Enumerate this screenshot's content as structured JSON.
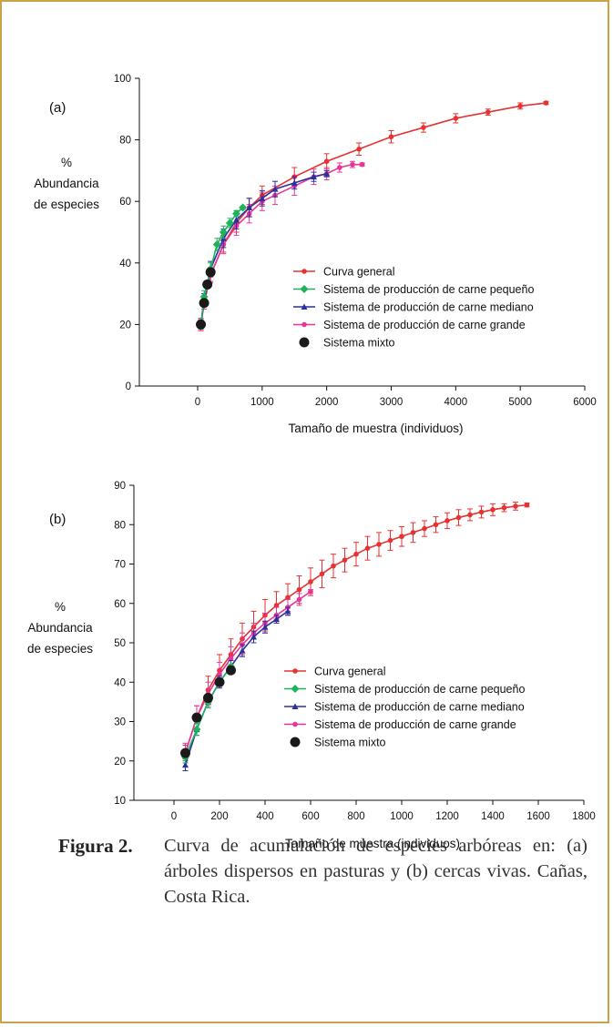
{
  "caption": {
    "label": "Figura 2.",
    "text": "Curva de acumulación de especies arbóreas en: (a) árboles dispersos en pasturas y (b) cercas vivas. Cañas, Costa Rica."
  },
  "colors": {
    "general": "#e63232",
    "pequeno": "#1db35c",
    "mediano": "#2b2fa0",
    "grande": "#e8359a",
    "mixto": "#1a1a1a",
    "frame": "#c9a24a"
  },
  "chart_data": [
    {
      "type": "line",
      "panel_label": "(a)",
      "ylabel": "%\nAbundancia\nde especies",
      "xlabel": "Tamaño de muestra (individuos)",
      "xlim": [
        -1000,
        6000
      ],
      "ylim": [
        0,
        100
      ],
      "xticks": [
        0,
        1000,
        2000,
        3000,
        4000,
        5000,
        6000
      ],
      "yticks": [
        0,
        20,
        40,
        60,
        80,
        100
      ],
      "legend_position": "lower-right",
      "series": [
        {
          "name": "Curva general",
          "key": "general",
          "marker": "circle",
          "x": [
            50,
            100,
            200,
            400,
            600,
            800,
            1000,
            1500,
            2000,
            2500,
            3000,
            3500,
            4000,
            4500,
            5000,
            5400
          ],
          "y": [
            20,
            27,
            36,
            46,
            53,
            58,
            62,
            68,
            73,
            77,
            81,
            84,
            87,
            89,
            91,
            92
          ],
          "err": [
            2,
            2,
            2,
            2.5,
            3,
            3,
            3,
            3,
            2.5,
            2,
            2,
            1.5,
            1.5,
            1,
            1,
            0.5
          ]
        },
        {
          "name": "Sistema de producción de carne pequeño",
          "key": "pequeno",
          "marker": "diamond",
          "x": [
            50,
            100,
            200,
            300,
            400,
            500,
            600,
            700
          ],
          "y": [
            20,
            29,
            38,
            46,
            50,
            53,
            56,
            58
          ],
          "err": [
            1.5,
            2,
            2,
            2,
            2,
            1.5,
            1,
            0.5
          ]
        },
        {
          "name": "Sistema de producción de carne mediano",
          "key": "mediano",
          "marker": "triangle",
          "x": [
            50,
            100,
            200,
            400,
            600,
            800,
            1000,
            1200,
            1500,
            1800,
            2000
          ],
          "y": [
            20,
            28,
            38,
            48,
            54,
            58,
            61,
            64,
            66,
            68,
            69
          ],
          "err": [
            1.5,
            2,
            2.5,
            3,
            3,
            3,
            2.5,
            2.5,
            2,
            1.5,
            1
          ]
        },
        {
          "name": "Sistema de producción de carne grande",
          "key": "grande",
          "marker": "circle",
          "x": [
            50,
            100,
            200,
            400,
            600,
            800,
            1000,
            1200,
            1500,
            1800,
            2000,
            2200,
            2400,
            2550
          ],
          "y": [
            20,
            27,
            36,
            46,
            52,
            56,
            60,
            62,
            65,
            68,
            69,
            71,
            72,
            72
          ],
          "err": [
            2,
            2,
            2.5,
            3,
            3,
            3,
            3,
            3,
            3,
            2.5,
            2,
            1.5,
            1,
            0.5
          ]
        },
        {
          "name": "Sistema mixto",
          "key": "mixto",
          "marker": "dot",
          "x": [
            50,
            100,
            150,
            200
          ],
          "y": [
            20,
            27,
            33,
            37
          ],
          "err": []
        }
      ]
    },
    {
      "type": "line",
      "panel_label": "(b)",
      "ylabel": "%\nAbundancia\nde especies",
      "xlabel": "Tamaño de muestra (individuos)",
      "xlim": [
        -200,
        1800
      ],
      "ylim": [
        10,
        90
      ],
      "xticks": [
        0,
        200,
        400,
        600,
        800,
        1000,
        1200,
        1400,
        1600,
        1800
      ],
      "yticks": [
        10,
        20,
        30,
        40,
        50,
        60,
        70,
        80,
        90
      ],
      "legend_position": "lower-right",
      "series": [
        {
          "name": "Curva general",
          "key": "general",
          "marker": "circle",
          "x": [
            50,
            100,
            150,
            200,
            250,
            300,
            350,
            400,
            450,
            500,
            550,
            600,
            650,
            700,
            750,
            800,
            850,
            900,
            950,
            1000,
            1050,
            1100,
            1150,
            1200,
            1250,
            1300,
            1350,
            1400,
            1450,
            1500,
            1550
          ],
          "y": [
            22,
            31,
            38,
            43,
            47,
            51,
            54,
            57,
            59.5,
            61.5,
            63.5,
            65.5,
            67.5,
            69.5,
            71,
            72.5,
            74,
            75,
            76,
            77,
            78,
            79,
            80,
            81,
            81.8,
            82.5,
            83.2,
            83.8,
            84.3,
            84.7,
            85
          ],
          "err": [
            2,
            3,
            3.5,
            4,
            4,
            4,
            4,
            4,
            3.5,
            3.5,
            3.5,
            3.5,
            3.5,
            3,
            3,
            3,
            3,
            3,
            2.5,
            2.5,
            2.5,
            2,
            2,
            2,
            2,
            1.5,
            1.5,
            1.5,
            1,
            1,
            0.5
          ]
        },
        {
          "name": "Sistema de producción de carne pequeño",
          "key": "pequeno",
          "marker": "diamond",
          "x": [
            50,
            100,
            150,
            200,
            250
          ],
          "y": [
            21,
            28,
            35,
            40,
            44
          ],
          "err": [
            1.5,
            1.5,
            1.5,
            1,
            0.5
          ]
        },
        {
          "name": "Sistema de producción de carne mediano",
          "key": "mediano",
          "marker": "triangle",
          "x": [
            50,
            100,
            150,
            200,
            250,
            300,
            350,
            400,
            450,
            500
          ],
          "y": [
            19,
            28,
            35,
            40,
            44,
            48,
            51.5,
            54,
            56,
            58
          ],
          "err": [
            1.5,
            1.5,
            1.5,
            1.5,
            1.5,
            1.5,
            1.5,
            1.5,
            1,
            1
          ]
        },
        {
          "name": "Sistema de producción de carne grande",
          "key": "grande",
          "marker": "circle",
          "x": [
            50,
            100,
            150,
            200,
            250,
            300,
            350,
            400,
            450,
            500,
            550,
            600
          ],
          "y": [
            22,
            31,
            37,
            42,
            46,
            49.5,
            52.5,
            55,
            57,
            59,
            61,
            63
          ],
          "err": [
            2.5,
            3,
            3,
            3,
            3,
            3,
            2.5,
            2.5,
            2,
            2,
            1.5,
            0.5
          ]
        },
        {
          "name": "Sistema mixto",
          "key": "mixto",
          "marker": "dot",
          "x": [
            50,
            100,
            150,
            200,
            250
          ],
          "y": [
            22,
            31,
            36,
            40,
            43
          ],
          "err": []
        }
      ]
    }
  ]
}
